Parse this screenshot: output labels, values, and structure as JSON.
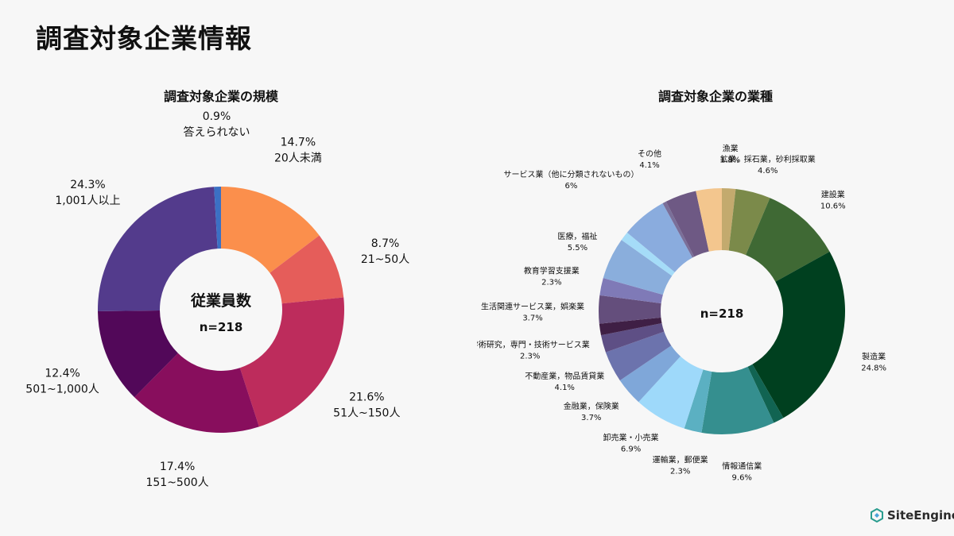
{
  "page": {
    "title": "調査対象企業情報"
  },
  "brand": {
    "name": "SiteEngine"
  },
  "chart_data": [
    {
      "type": "pie",
      "title": "調査対象企業の規模",
      "center_label": "従業員数",
      "center_sub": "n=218",
      "slices": [
        {
          "label": "20人未満",
          "value": 14.7,
          "pct": "14.7%",
          "color": "#fb8f4c"
        },
        {
          "label": "21~50人",
          "value": 8.7,
          "pct": "8.7%",
          "color": "#e55d5a"
        },
        {
          "label": "51人~150人",
          "value": 21.6,
          "pct": "21.6%",
          "color": "#bd2c5c"
        },
        {
          "label": "151~500人",
          "value": 17.4,
          "pct": "17.4%",
          "color": "#880e5d"
        },
        {
          "label": "501~1,000人",
          "value": 12.4,
          "pct": "12.4%",
          "color": "#520859"
        },
        {
          "label": "1,001人以上",
          "value": 24.3,
          "pct": "24.3%",
          "color": "#533b8c"
        },
        {
          "label": "答えられない",
          "value": 0.9,
          "pct": "0.9%",
          "color": "#3b70c4"
        }
      ]
    },
    {
      "type": "pie",
      "title": "調査対象企業の業種",
      "center_sub": "n=218",
      "slices": [
        {
          "label": "漁業",
          "value": 1.8,
          "pct": "1.8%",
          "color": "#c3aa6e"
        },
        {
          "label": "鉱業，採石業，砂利採取業",
          "value": 4.6,
          "pct": "4.6%",
          "color": "#7b8a4a"
        },
        {
          "label": "建設業",
          "value": 10.6,
          "pct": "10.6%",
          "color": "#3f6934"
        },
        {
          "label": "製造業",
          "value": 24.8,
          "pct": "24.8%",
          "color": "#00401f"
        },
        {
          "label": "",
          "value": 1.4,
          "pct": "",
          "color": "#116452"
        },
        {
          "label": "情報通信業",
          "value": 9.6,
          "pct": "9.6%",
          "color": "#358f8f"
        },
        {
          "label": "運輸業，郵便業",
          "value": 2.3,
          "pct": "2.3%",
          "color": "#5bb0c2"
        },
        {
          "label": "卸売業・小売業",
          "value": 6.9,
          "pct": "6.9%",
          "color": "#9ed9fa"
        },
        {
          "label": "金融業，保険業",
          "value": 3.7,
          "pct": "3.7%",
          "color": "#7fa7d9"
        },
        {
          "label": "不動産業，物品賃貸業",
          "value": 4.1,
          "pct": "4.1%",
          "color": "#6c73ad"
        },
        {
          "label": "学術研究，専門・技術サービス業",
          "value": 2.3,
          "pct": "2.3%",
          "color": "#5e4f85"
        },
        {
          "label": "",
          "value": 1.5,
          "pct": "",
          "color": "#3f1f45"
        },
        {
          "label": "生活関連サービス業，娯楽業",
          "value": 3.7,
          "pct": "3.7%",
          "color": "#644e7c"
        },
        {
          "label": "教育学習支援業",
          "value": 2.3,
          "pct": "2.3%",
          "color": "#7f7ab7"
        },
        {
          "label": "医療，福祉",
          "value": 5.5,
          "pct": "5.5%",
          "color": "#8aaedc"
        },
        {
          "label": "",
          "value": 1.2,
          "pct": "",
          "color": "#a5dcf8"
        },
        {
          "label": "サービス業（他に分類されないもの）",
          "value": 6,
          "pct": "6%",
          "color": "#8aacde"
        },
        {
          "label": "",
          "value": 0.5,
          "pct": "",
          "color": "#7a6f99"
        },
        {
          "label": "その他",
          "value": 4.1,
          "pct": "4.1%",
          "color": "#6e5984"
        },
        {
          "label": "",
          "value": 3.4,
          "pct": "",
          "color": "#f3c68e"
        }
      ]
    }
  ]
}
